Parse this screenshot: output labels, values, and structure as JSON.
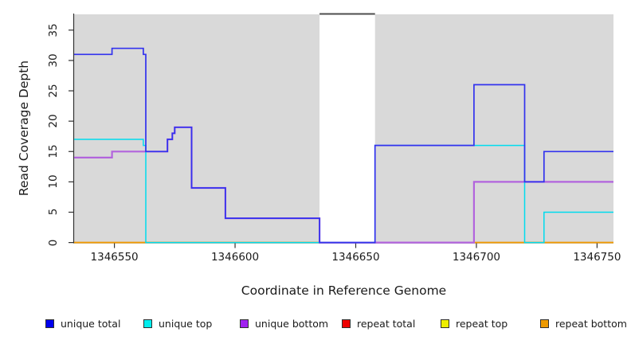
{
  "chart_data": {
    "type": "line",
    "title": "",
    "xlabel": "Coordinate in Reference Genome",
    "ylabel": "Read Coverage Depth",
    "x_ticks": [
      1346550,
      1346600,
      1346650,
      1346700,
      1346750
    ],
    "y_ticks": [
      0,
      5,
      10,
      15,
      20,
      25,
      30,
      35
    ],
    "xlim": [
      1346533.3,
      1346756.8
    ],
    "ylim": [
      0,
      37.6
    ],
    "grid": false,
    "panel_background": "#d9d9d9",
    "axis_color": "#333333",
    "step_mode": "after",
    "gap_region": {
      "x_start": 1346635,
      "x_end": 1346658,
      "fill": "#ffffff",
      "top_border_color": "#4d4d4d"
    },
    "series": [
      {
        "name": "repeat total",
        "color": "#ee0000",
        "width": 1.4,
        "points": [
          [
            1346533.3,
            0
          ]
        ]
      },
      {
        "name": "repeat top",
        "color": "#eeee00",
        "width": 1.4,
        "points": [
          [
            1346533.3,
            0
          ]
        ]
      },
      {
        "name": "repeat bottom",
        "color": "#f09a00",
        "width": 1.7,
        "points": [
          [
            1346533.3,
            0
          ]
        ]
      },
      {
        "name": "unique bottom",
        "color": "#b264dd",
        "width": 2.2,
        "points": [
          [
            1346533.3,
            14
          ],
          [
            1346549,
            15
          ],
          [
            1346572,
            17
          ],
          [
            1346574,
            18
          ],
          [
            1346575,
            19
          ],
          [
            1346582,
            9
          ],
          [
            1346596,
            4
          ],
          [
            1346635,
            0
          ],
          [
            1346699,
            10
          ]
        ]
      },
      {
        "name": "unique top",
        "color": "#00dcee",
        "width": 1.5,
        "points": [
          [
            1346533.3,
            17
          ],
          [
            1346562,
            16
          ],
          [
            1346563,
            0
          ],
          [
            1346658,
            16
          ],
          [
            1346720,
            0
          ],
          [
            1346728,
            5
          ]
        ]
      },
      {
        "name": "unique total",
        "color": "#3232ee",
        "width": 1.7,
        "points": [
          [
            1346533.3,
            31
          ],
          [
            1346549,
            32
          ],
          [
            1346562,
            31
          ],
          [
            1346563,
            15
          ],
          [
            1346572,
            17
          ],
          [
            1346574,
            18
          ],
          [
            1346575,
            19
          ],
          [
            1346582,
            9
          ],
          [
            1346596,
            4
          ],
          [
            1346635,
            0
          ],
          [
            1346658,
            16
          ],
          [
            1346699,
            26
          ],
          [
            1346720,
            10
          ],
          [
            1346728,
            15
          ]
        ]
      }
    ],
    "legend": {
      "position": "bottom",
      "items": [
        {
          "label": "unique total",
          "color": "#0000ee"
        },
        {
          "label": "unique top",
          "color": "#00eeee"
        },
        {
          "label": "unique bottom",
          "color": "#a020f0"
        },
        {
          "label": "repeat total",
          "color": "#ee0000"
        },
        {
          "label": "repeat top",
          "color": "#eeee00"
        },
        {
          "label": "repeat bottom",
          "color": "#ee9a00"
        }
      ]
    }
  }
}
